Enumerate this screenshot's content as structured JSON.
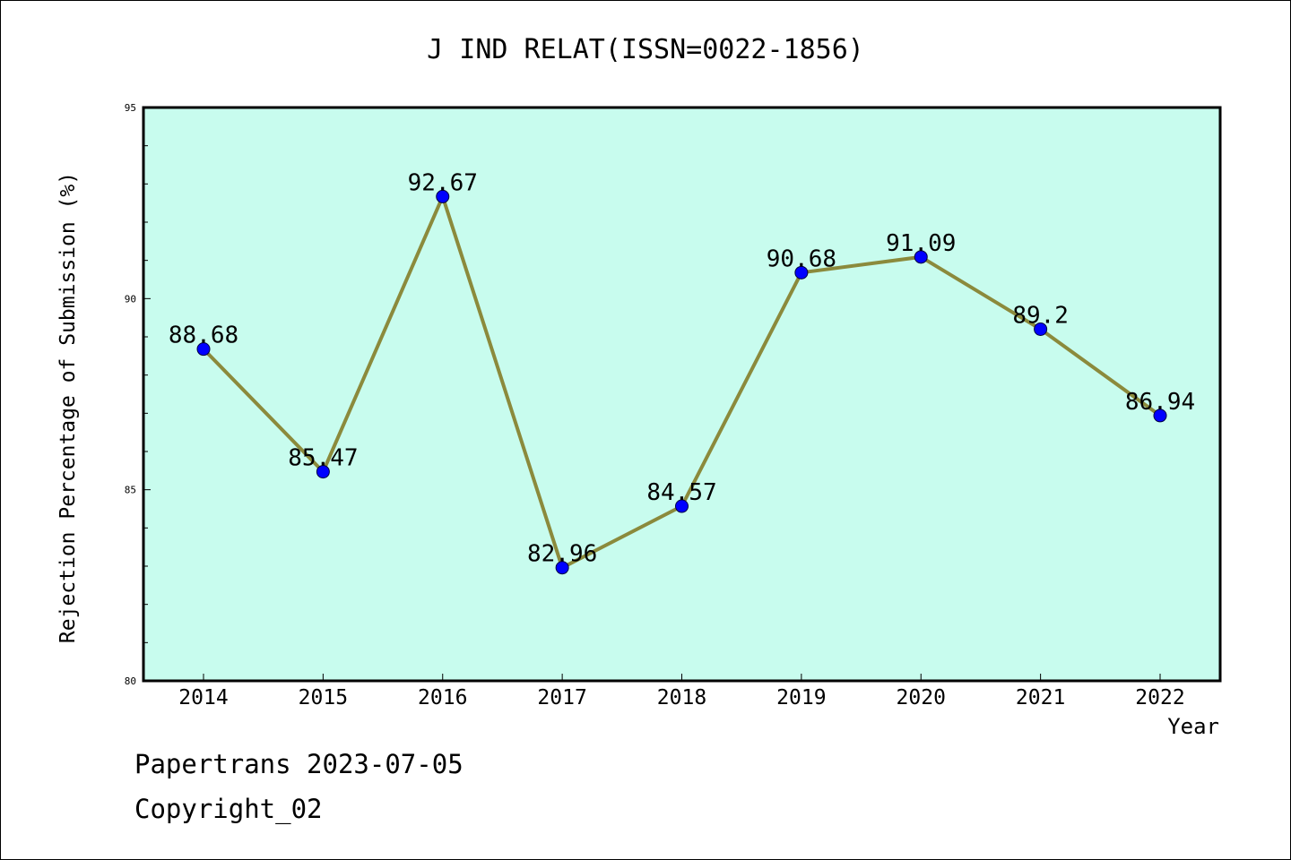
{
  "colors": {
    "plot_background": "#c8fcee",
    "line": "#8b8a3c",
    "marker": "#0000ff"
  },
  "footer": {
    "line1": "Papertrans 2023-07-05",
    "line2": "Copyright_02"
  },
  "chart_data": {
    "type": "line",
    "title": "J IND RELAT(ISSN=0022-1856)",
    "xlabel": "Year",
    "ylabel": "Rejection Percentage of Submission (%)",
    "categories": [
      "2014",
      "2015",
      "2016",
      "2017",
      "2018",
      "2019",
      "2020",
      "2021",
      "2022"
    ],
    "values": [
      88.68,
      85.47,
      92.67,
      82.96,
      84.57,
      90.68,
      91.09,
      89.2,
      86.94
    ],
    "data_labels": [
      "88.68",
      "85.47",
      "92.67",
      "82.96",
      "84.57",
      "90.68",
      "91.09",
      "89.2",
      "86.94"
    ],
    "ylim": [
      80,
      95
    ],
    "yticks": [
      "80",
      "85",
      "90",
      "95"
    ],
    "grid": false,
    "legend": "none"
  }
}
